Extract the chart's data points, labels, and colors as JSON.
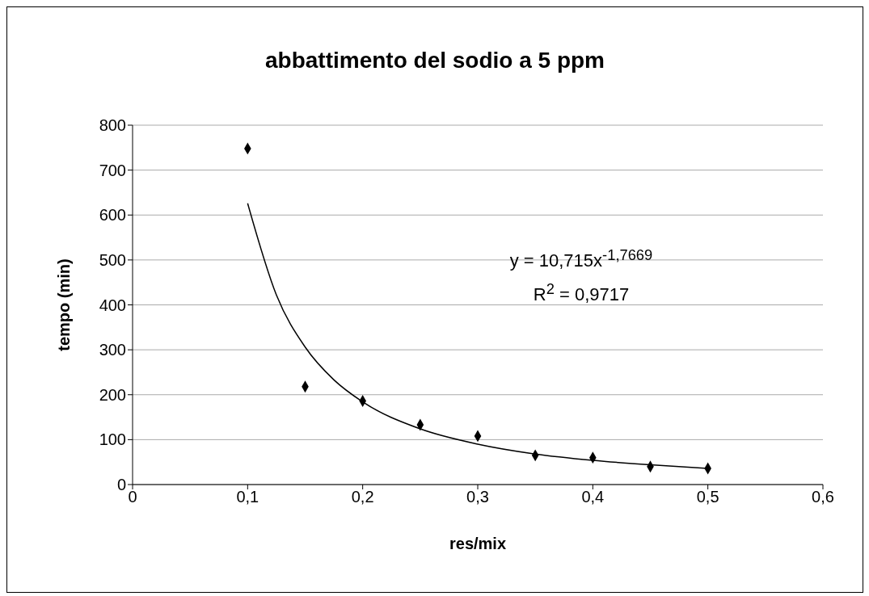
{
  "chart_data": {
    "type": "scatter",
    "title": "abbattimento del sodio a 5 ppm",
    "xlabel": "res/mix",
    "ylabel": "tempo (min)",
    "xlim": [
      0,
      0.6
    ],
    "xticks": [
      0,
      {
        "value": 0.1,
        "label": "0,1"
      },
      {
        "value": 0.2,
        "label": "0,2"
      },
      {
        "value": 0.3,
        "label": "0,3"
      },
      {
        "value": 0.4,
        "label": "0,4"
      },
      {
        "value": 0.5,
        "label": "0,5"
      },
      {
        "value": 0.6,
        "label": "0,6"
      }
    ],
    "ylim": [
      0,
      800
    ],
    "yticks": [
      0,
      100,
      200,
      300,
      400,
      500,
      600,
      700,
      800
    ],
    "grid": "y",
    "series": [
      {
        "color": "#000000",
        "marker": "diamond",
        "x": [
          0.1,
          0.15,
          0.2,
          0.25,
          0.3,
          0.35,
          0.4,
          0.45,
          0.5
        ],
        "values": [
          748,
          218,
          186,
          133,
          108,
          65,
          60,
          40,
          36
        ]
      },
      {
        "type": "line",
        "color": "#000000",
        "marker": "none",
        "x": [
          0.1,
          0.125,
          0.15,
          0.175,
          0.2,
          0.25,
          0.3,
          0.35,
          0.4,
          0.45,
          0.5
        ],
        "values": [
          626,
          422,
          306,
          233,
          184,
          124,
          90,
          68,
          54,
          44,
          36
        ]
      }
    ],
    "annotations": [
      "y = 10,715x$^{-1,7669}$",
      "R$^{2}$ = 0,9717"
    ]
  }
}
